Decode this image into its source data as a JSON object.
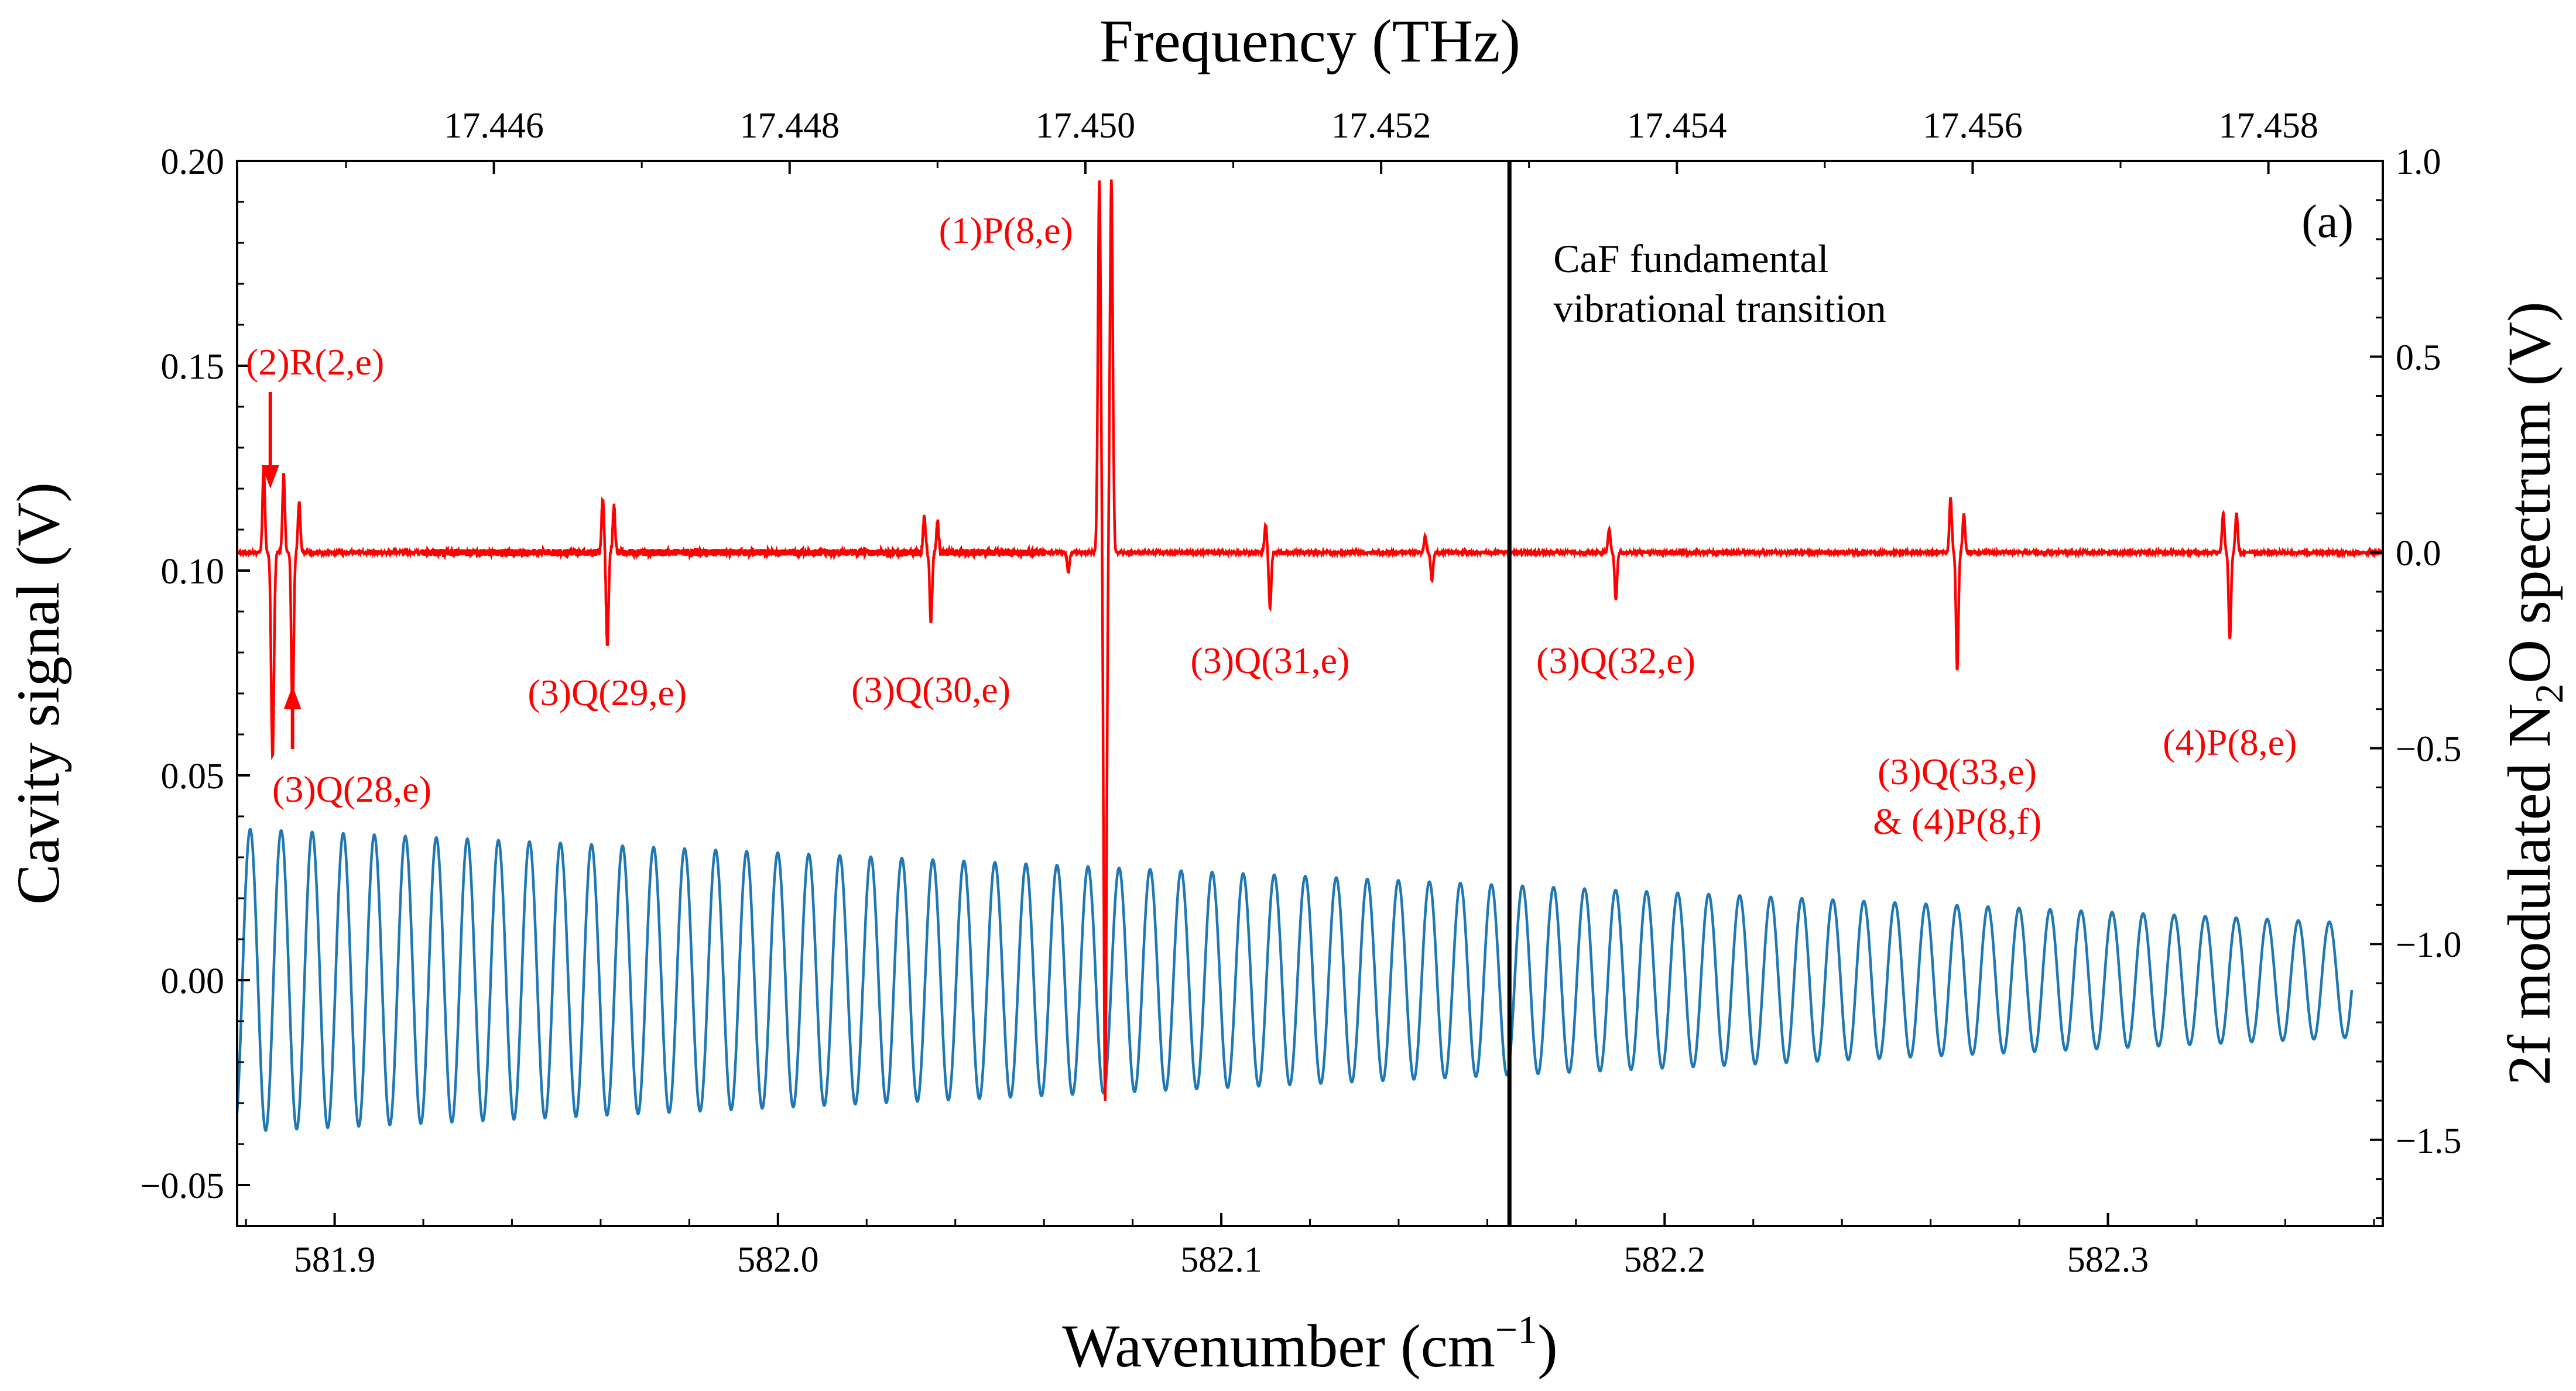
{
  "chart_data": {
    "type": "line",
    "title": "",
    "xlabel": "Wavenumber (cm",
    "xlabel_sup": "−1",
    "xlabel_close": ")",
    "top_xlabel": "Frequency (THz)",
    "ylabel_left": "Cavity signal (V)",
    "ylabel_right_parts": [
      "2f modulated N",
      "2",
      "O spectrum (V)"
    ],
    "panel_label": "(a)",
    "xlim": [
      581.878,
      582.362
    ],
    "ylim_left": [
      -0.06,
      0.2
    ],
    "ylim_right": [
      -1.72,
      1.0
    ],
    "x_ticks": [
      "581.9",
      "582.0",
      "582.1",
      "582.2",
      "582.3"
    ],
    "x_tick_values": [
      581.9,
      582.0,
      582.1,
      582.2,
      582.3
    ],
    "y_left_ticks": [
      "−0.05",
      "0.00",
      "0.05",
      "0.10",
      "0.15",
      "0.20"
    ],
    "y_left_tick_values": [
      -0.05,
      0.0,
      0.05,
      0.1,
      0.15,
      0.2
    ],
    "y_right_ticks": [
      "−1.5",
      "−1.0",
      "−0.5",
      "0.0",
      "0.5",
      "1.0"
    ],
    "y_right_tick_values": [
      -1.5,
      -1.0,
      -0.5,
      0.0,
      0.5,
      1.0
    ],
    "top_ticks": [
      "17.446",
      "17.448",
      "17.450",
      "17.452",
      "17.454",
      "17.456",
      "17.458"
    ],
    "top_tick_values": [
      17.446,
      17.448,
      17.45,
      17.452,
      17.454,
      17.456,
      17.458
    ],
    "thz_per_wavenumber": 0.0299792458,
    "vertical_line": {
      "x": 582.165,
      "label_lines": [
        "CaF fundamental",
        "vibrational transition"
      ]
    },
    "series": [
      {
        "name": "Cavity signal",
        "color": "#1f77b4",
        "axis": "left",
        "model": "oscillation",
        "period": 0.007,
        "x_start": 581.878,
        "x_end": 582.355,
        "amplitude_start": 0.037,
        "amplitude_end": 0.014,
        "center": 0.0
      },
      {
        "name": "2f modulated N2O spectrum",
        "color": "#ff0000",
        "axis": "right",
        "baseline": 0.0,
        "x_start": 581.878,
        "x_end": 582.362,
        "peaks": [
          {
            "x": 581.884,
            "height": 0.22
          },
          {
            "x": 581.886,
            "height": -0.52
          },
          {
            "x": 581.8885,
            "height": 0.2
          },
          {
            "x": 581.8905,
            "height": -0.42
          },
          {
            "x": 581.892,
            "height": 0.13
          },
          {
            "x": 581.9605,
            "height": 0.14
          },
          {
            "x": 581.9615,
            "height": -0.24
          },
          {
            "x": 581.963,
            "height": 0.12
          },
          {
            "x": 582.033,
            "height": 0.09
          },
          {
            "x": 582.0345,
            "height": -0.18
          },
          {
            "x": 582.036,
            "height": 0.08
          },
          {
            "x": 582.0655,
            "height": -0.05
          },
          {
            "x": 582.0725,
            "height": 0.95
          },
          {
            "x": 582.0738,
            "height": -1.4
          },
          {
            "x": 582.0752,
            "height": 0.95
          },
          {
            "x": 582.11,
            "height": 0.07
          },
          {
            "x": 582.111,
            "height": -0.14
          },
          {
            "x": 582.146,
            "height": 0.04
          },
          {
            "x": 582.1475,
            "height": -0.07
          },
          {
            "x": 582.1875,
            "height": 0.06
          },
          {
            "x": 582.189,
            "height": -0.12
          },
          {
            "x": 582.2645,
            "height": 0.14
          },
          {
            "x": 582.266,
            "height": -0.3
          },
          {
            "x": 582.2675,
            "height": 0.1
          },
          {
            "x": 582.326,
            "height": 0.1
          },
          {
            "x": 582.3275,
            "height": -0.22
          },
          {
            "x": 582.329,
            "height": 0.1
          }
        ]
      }
    ],
    "annotations": [
      {
        "id": "r2e",
        "text": "(2)R(2,e)"
      },
      {
        "id": "q28",
        "text": "(3)Q(28,e)"
      },
      {
        "id": "q29",
        "text": "(3)Q(29,e)"
      },
      {
        "id": "q30",
        "text": "(3)Q(30,e)"
      },
      {
        "id": "p8e1",
        "text": "(1)P(8,e)"
      },
      {
        "id": "q31",
        "text": "(3)Q(31,e)"
      },
      {
        "id": "q32",
        "text": "(3)Q(32,e)"
      },
      {
        "id": "q33a",
        "text": "(3)Q(33,e)"
      },
      {
        "id": "q33b",
        "text": "& (4)P(8,f)"
      },
      {
        "id": "p8e4",
        "text": "(4)P(8,e)"
      }
    ]
  }
}
